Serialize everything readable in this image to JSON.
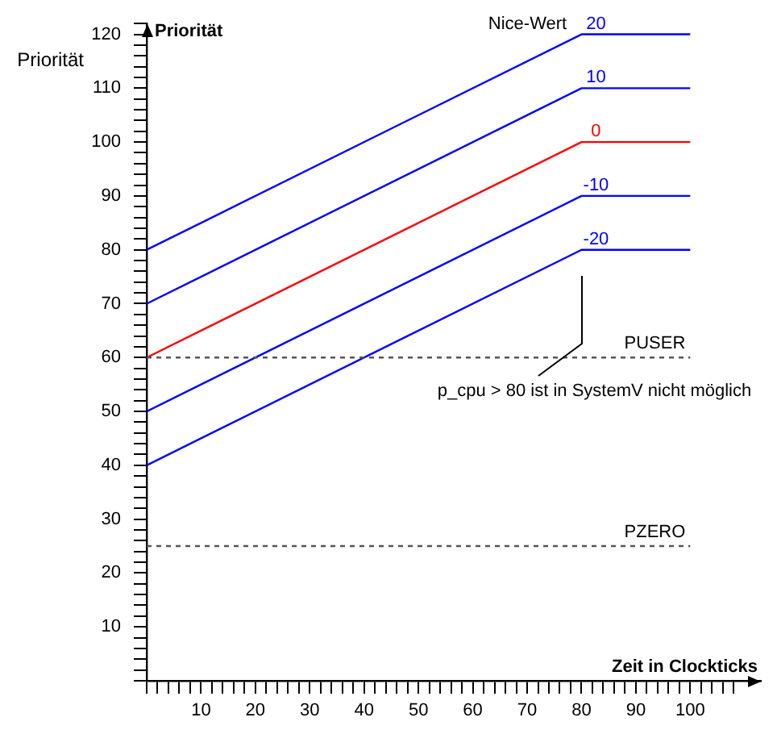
{
  "chart_data": {
    "type": "line",
    "xlabel": "Zeit in Clockticks",
    "ylabel": "Priorität",
    "legend_title": "Nice-Wert",
    "x": [
      0,
      80,
      100
    ],
    "series": [
      {
        "name": "20",
        "color": "#0000ff",
        "values": [
          80,
          120,
          120
        ]
      },
      {
        "name": "10",
        "color": "#0000ff",
        "values": [
          70,
          110,
          110
        ]
      },
      {
        "name": "0",
        "color": "#ff0000",
        "values": [
          60,
          100,
          100
        ]
      },
      {
        "name": "-10",
        "color": "#0000ff",
        "values": [
          50,
          90,
          90
        ]
      },
      {
        "name": "-20",
        "color": "#0000ff",
        "values": [
          40,
          80,
          80
        ]
      }
    ],
    "ref_lines": [
      {
        "axis": "y",
        "value": 60,
        "label": "PUSER",
        "color": "#555555",
        "line_style": "dashed"
      },
      {
        "axis": "y",
        "value": 25,
        "label": "PZERO",
        "color": "#555555",
        "line_style": "dashed"
      }
    ],
    "annotations": [
      "p_cpu > 80 ist in SystemV nicht möglich",
      "Priorität"
    ],
    "xlim": [
      0,
      113
    ],
    "ylim": [
      0,
      122
    ],
    "xticks": [
      {
        "value": 0,
        "label": null
      },
      {
        "value": 2,
        "label": null
      },
      {
        "value": 4,
        "label": null
      },
      {
        "value": 6,
        "label": null
      },
      {
        "value": 8,
        "label": null
      },
      10,
      {
        "value": 12,
        "label": null
      },
      {
        "value": 14,
        "label": null
      },
      {
        "value": 16,
        "label": null
      },
      {
        "value": 18,
        "label": null
      },
      20,
      {
        "value": 22,
        "label": null
      },
      {
        "value": 24,
        "label": null
      },
      {
        "value": 26,
        "label": null
      },
      {
        "value": 28,
        "label": null
      },
      30,
      {
        "value": 32,
        "label": null
      },
      {
        "value": 34,
        "label": null
      },
      {
        "value": 36,
        "label": null
      },
      {
        "value": 38,
        "label": null
      },
      40,
      {
        "value": 42,
        "label": null
      },
      {
        "value": 44,
        "label": null
      },
      {
        "value": 46,
        "label": null
      },
      {
        "value": 48,
        "label": null
      },
      50,
      {
        "value": 52,
        "label": null
      },
      {
        "value": 54,
        "label": null
      },
      {
        "value": 56,
        "label": null
      },
      {
        "value": 58,
        "label": null
      },
      60,
      {
        "value": 62,
        "label": null
      },
      {
        "value": 64,
        "label": null
      },
      {
        "value": 66,
        "label": null
      },
      {
        "value": 68,
        "label": null
      },
      70,
      {
        "value": 72,
        "label": null
      },
      {
        "value": 74,
        "label": null
      },
      {
        "value": 76,
        "label": null
      },
      {
        "value": 78,
        "label": null
      },
      80,
      {
        "value": 82,
        "label": null
      },
      {
        "value": 84,
        "label": null
      },
      {
        "value": 86,
        "label": null
      },
      {
        "value": 88,
        "label": null
      },
      90,
      {
        "value": 92,
        "label": null
      },
      {
        "value": 94,
        "label": null
      },
      {
        "value": 96,
        "label": null
      },
      {
        "value": 98,
        "label": null
      },
      100,
      {
        "value": 102,
        "label": null
      },
      {
        "value": 104,
        "label": null
      },
      {
        "value": 106,
        "label": null
      },
      {
        "value": 108,
        "label": null
      }
    ],
    "yticks": [
      {
        "value": 0,
        "label": null
      },
      {
        "value": 2,
        "label": null
      },
      {
        "value": 4,
        "label": null
      },
      {
        "value": 6,
        "label": null
      },
      {
        "value": 8,
        "label": null
      },
      10,
      {
        "value": 12,
        "label": null
      },
      {
        "value": 14,
        "label": null
      },
      {
        "value": 16,
        "label": null
      },
      {
        "value": 18,
        "label": null
      },
      20,
      {
        "value": 22,
        "label": null
      },
      {
        "value": 24,
        "label": null
      },
      {
        "value": 26,
        "label": null
      },
      {
        "value": 28,
        "label": null
      },
      30,
      {
        "value": 32,
        "label": null
      },
      {
        "value": 34,
        "label": null
      },
      {
        "value": 36,
        "label": null
      },
      {
        "value": 38,
        "label": null
      },
      40,
      {
        "value": 42,
        "label": null
      },
      {
        "value": 44,
        "label": null
      },
      {
        "value": 46,
        "label": null
      },
      {
        "value": 48,
        "label": null
      },
      50,
      {
        "value": 52,
        "label": null
      },
      {
        "value": 54,
        "label": null
      },
      {
        "value": 56,
        "label": null
      },
      {
        "value": 58,
        "label": null
      },
      60,
      {
        "value": 62,
        "label": null
      },
      {
        "value": 64,
        "label": null
      },
      {
        "value": 66,
        "label": null
      },
      {
        "value": 68,
        "label": null
      },
      70,
      {
        "value": 72,
        "label": null
      },
      {
        "value": 74,
        "label": null
      },
      {
        "value": 76,
        "label": null
      },
      {
        "value": 78,
        "label": null
      },
      80,
      {
        "value": 82,
        "label": null
      },
      {
        "value": 84,
        "label": null
      },
      {
        "value": 86,
        "label": null
      },
      {
        "value": 88,
        "label": null
      },
      90,
      {
        "value": 92,
        "label": null
      },
      {
        "value": 94,
        "label": null
      },
      {
        "value": 96,
        "label": null
      },
      {
        "value": 98,
        "label": null
      },
      100,
      {
        "value": 102,
        "label": null
      },
      {
        "value": 104,
        "label": null
      },
      {
        "value": 106,
        "label": null
      },
      {
        "value": 108,
        "label": null
      },
      110,
      {
        "value": 112,
        "label": null
      },
      {
        "value": 114,
        "label": null
      },
      {
        "value": 116,
        "label": null
      },
      {
        "value": 118,
        "label": null
      },
      120,
      {
        "value": 122,
        "label": null
      }
    ]
  }
}
